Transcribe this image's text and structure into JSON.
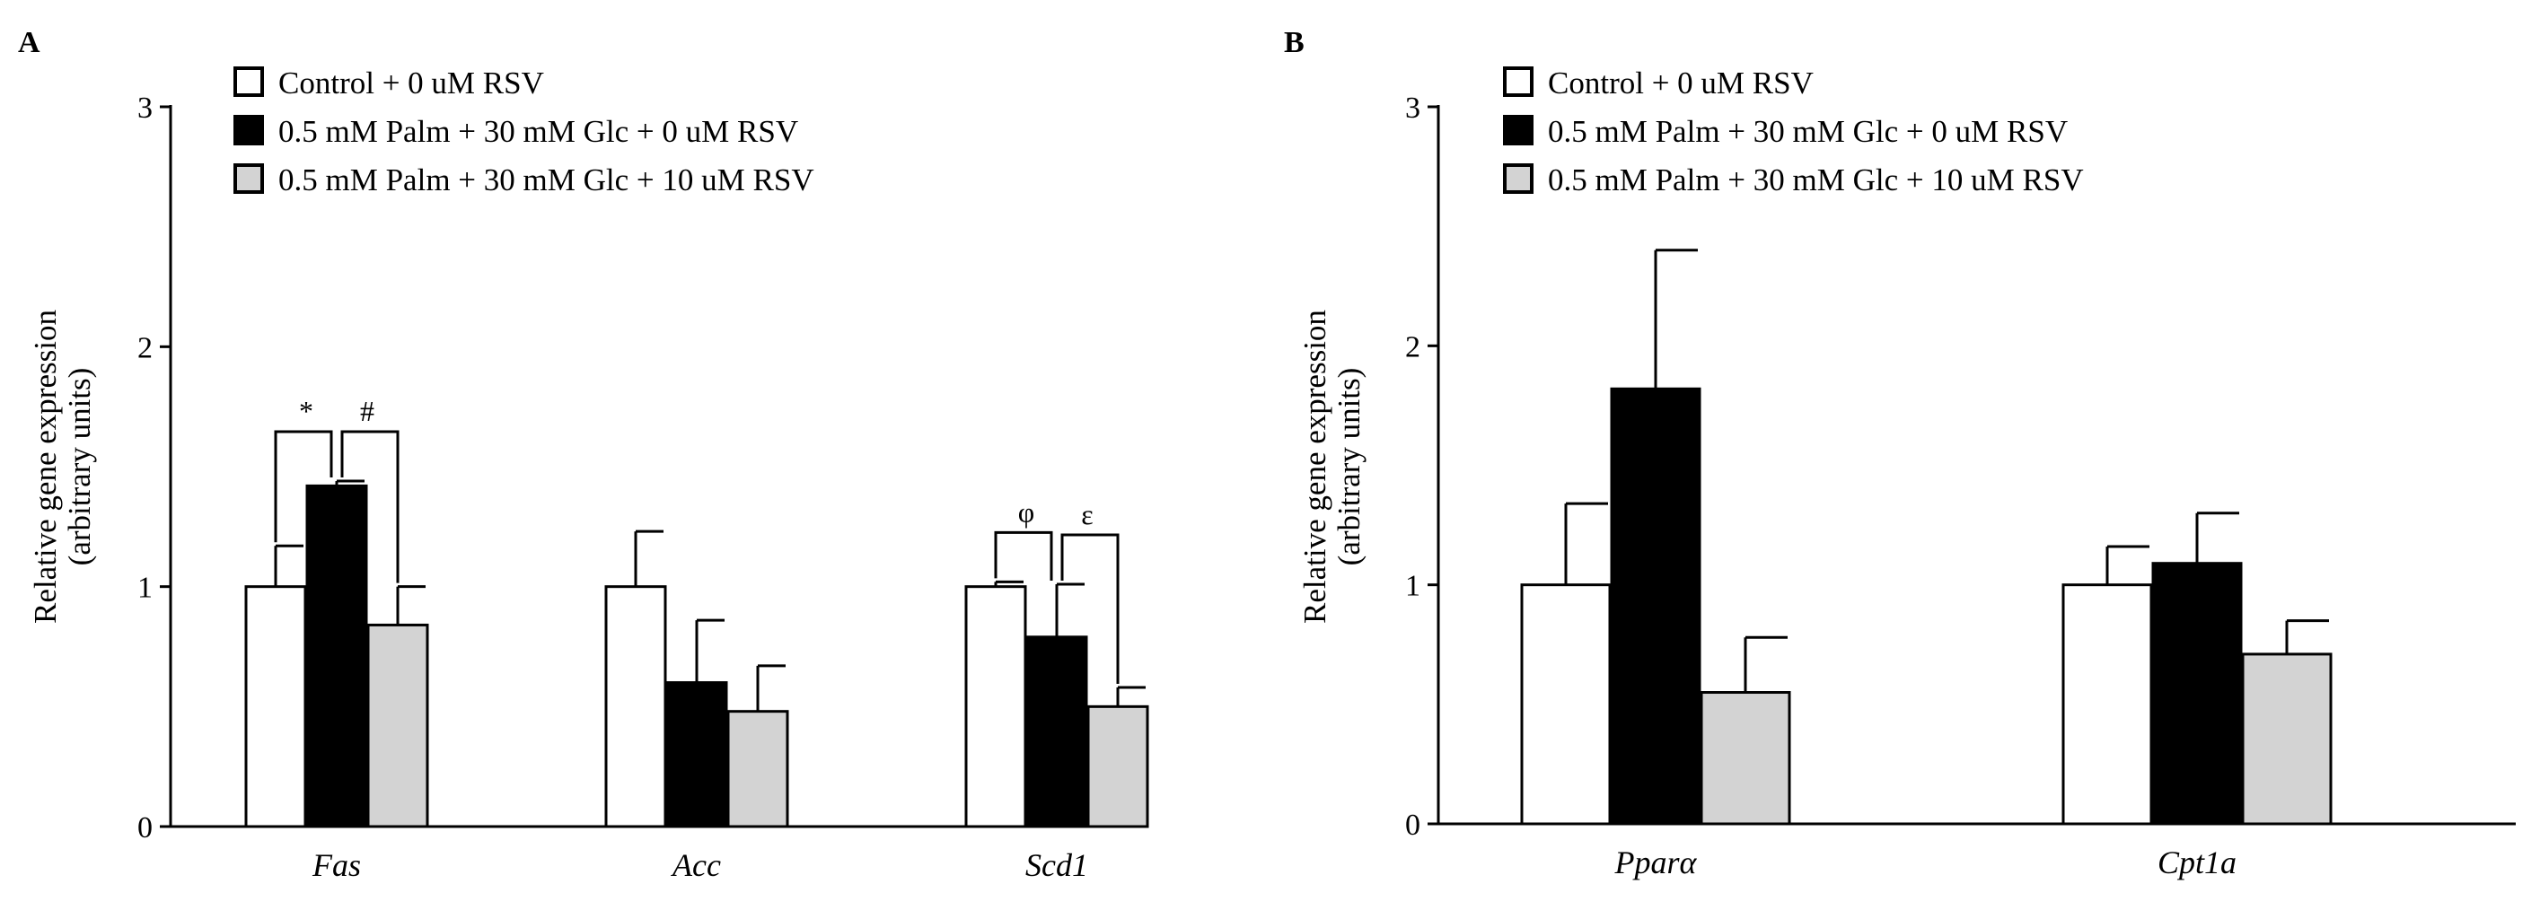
{
  "chart_data": [
    {
      "panel": "A",
      "type": "bar",
      "ylabel_lines": [
        "Relative gene expression",
        "(arbitrary units)"
      ],
      "ylim": [
        0,
        3
      ],
      "yticks": [
        "0",
        "1",
        "2",
        "3"
      ],
      "categories": [
        "Fas",
        "Acc",
        "Scd1"
      ],
      "legend": [
        "Control + 0 uM RSV",
        "0.5 mM Palm + 30 mM Glc + 0 uM RSV",
        "0.5 mM Palm + 30 mM Glc + 10 uM RSV"
      ],
      "series": [
        {
          "name": "Control + 0 uM RSV",
          "color": "#ffffff",
          "values": [
            1.0,
            1.0,
            1.0
          ],
          "errors": [
            0.17,
            0.23,
            0.02
          ]
        },
        {
          "name": "0.5 mM Palm + 30 mM Glc + 0 uM RSV",
          "color": "#000000",
          "values": [
            1.42,
            0.6,
            0.79
          ],
          "errors": [
            0.02,
            0.26,
            0.22
          ]
        },
        {
          "name": "0.5 mM Palm + 30 mM Glc + 10 uM RSV",
          "color": "#d3d3d3",
          "values": [
            0.84,
            0.48,
            0.5
          ],
          "errors": [
            0.16,
            0.19,
            0.08
          ]
        }
      ],
      "significance": [
        {
          "category": 0,
          "from": 0,
          "to": 1,
          "label": "*"
        },
        {
          "category": 0,
          "from": 1,
          "to": 2,
          "label": "#"
        },
        {
          "category": 2,
          "from": 0,
          "to": 1,
          "label": "φ"
        },
        {
          "category": 2,
          "from": 1,
          "to": 2,
          "label": "ε"
        }
      ]
    },
    {
      "panel": "B",
      "type": "bar",
      "ylabel_lines": [
        "Relative gene expression",
        "(arbitrary units)"
      ],
      "ylim": [
        0,
        3
      ],
      "yticks": [
        "0",
        "1",
        "2",
        "3"
      ],
      "categories": [
        "Pparα",
        "Cpt1a"
      ],
      "legend": [
        "Control + 0 uM RSV",
        "0.5 mM Palm + 30 mM Glc + 0 uM RSV",
        "0.5 mM Palm + 30 mM Glc + 10 uM RSV"
      ],
      "series": [
        {
          "name": "Control + 0 uM RSV",
          "color": "#ffffff",
          "values": [
            1.0,
            1.0
          ],
          "errors": [
            0.34,
            0.16
          ]
        },
        {
          "name": "0.5 mM Palm + 30 mM Glc + 0 uM RSV",
          "color": "#000000",
          "values": [
            1.82,
            1.09
          ],
          "errors": [
            0.58,
            0.21
          ]
        },
        {
          "name": "0.5 mM Palm + 30 mM Glc + 10 uM RSV",
          "color": "#d3d3d3",
          "values": [
            0.55,
            0.71
          ],
          "errors": [
            0.23,
            0.14
          ]
        }
      ],
      "significance": []
    }
  ]
}
